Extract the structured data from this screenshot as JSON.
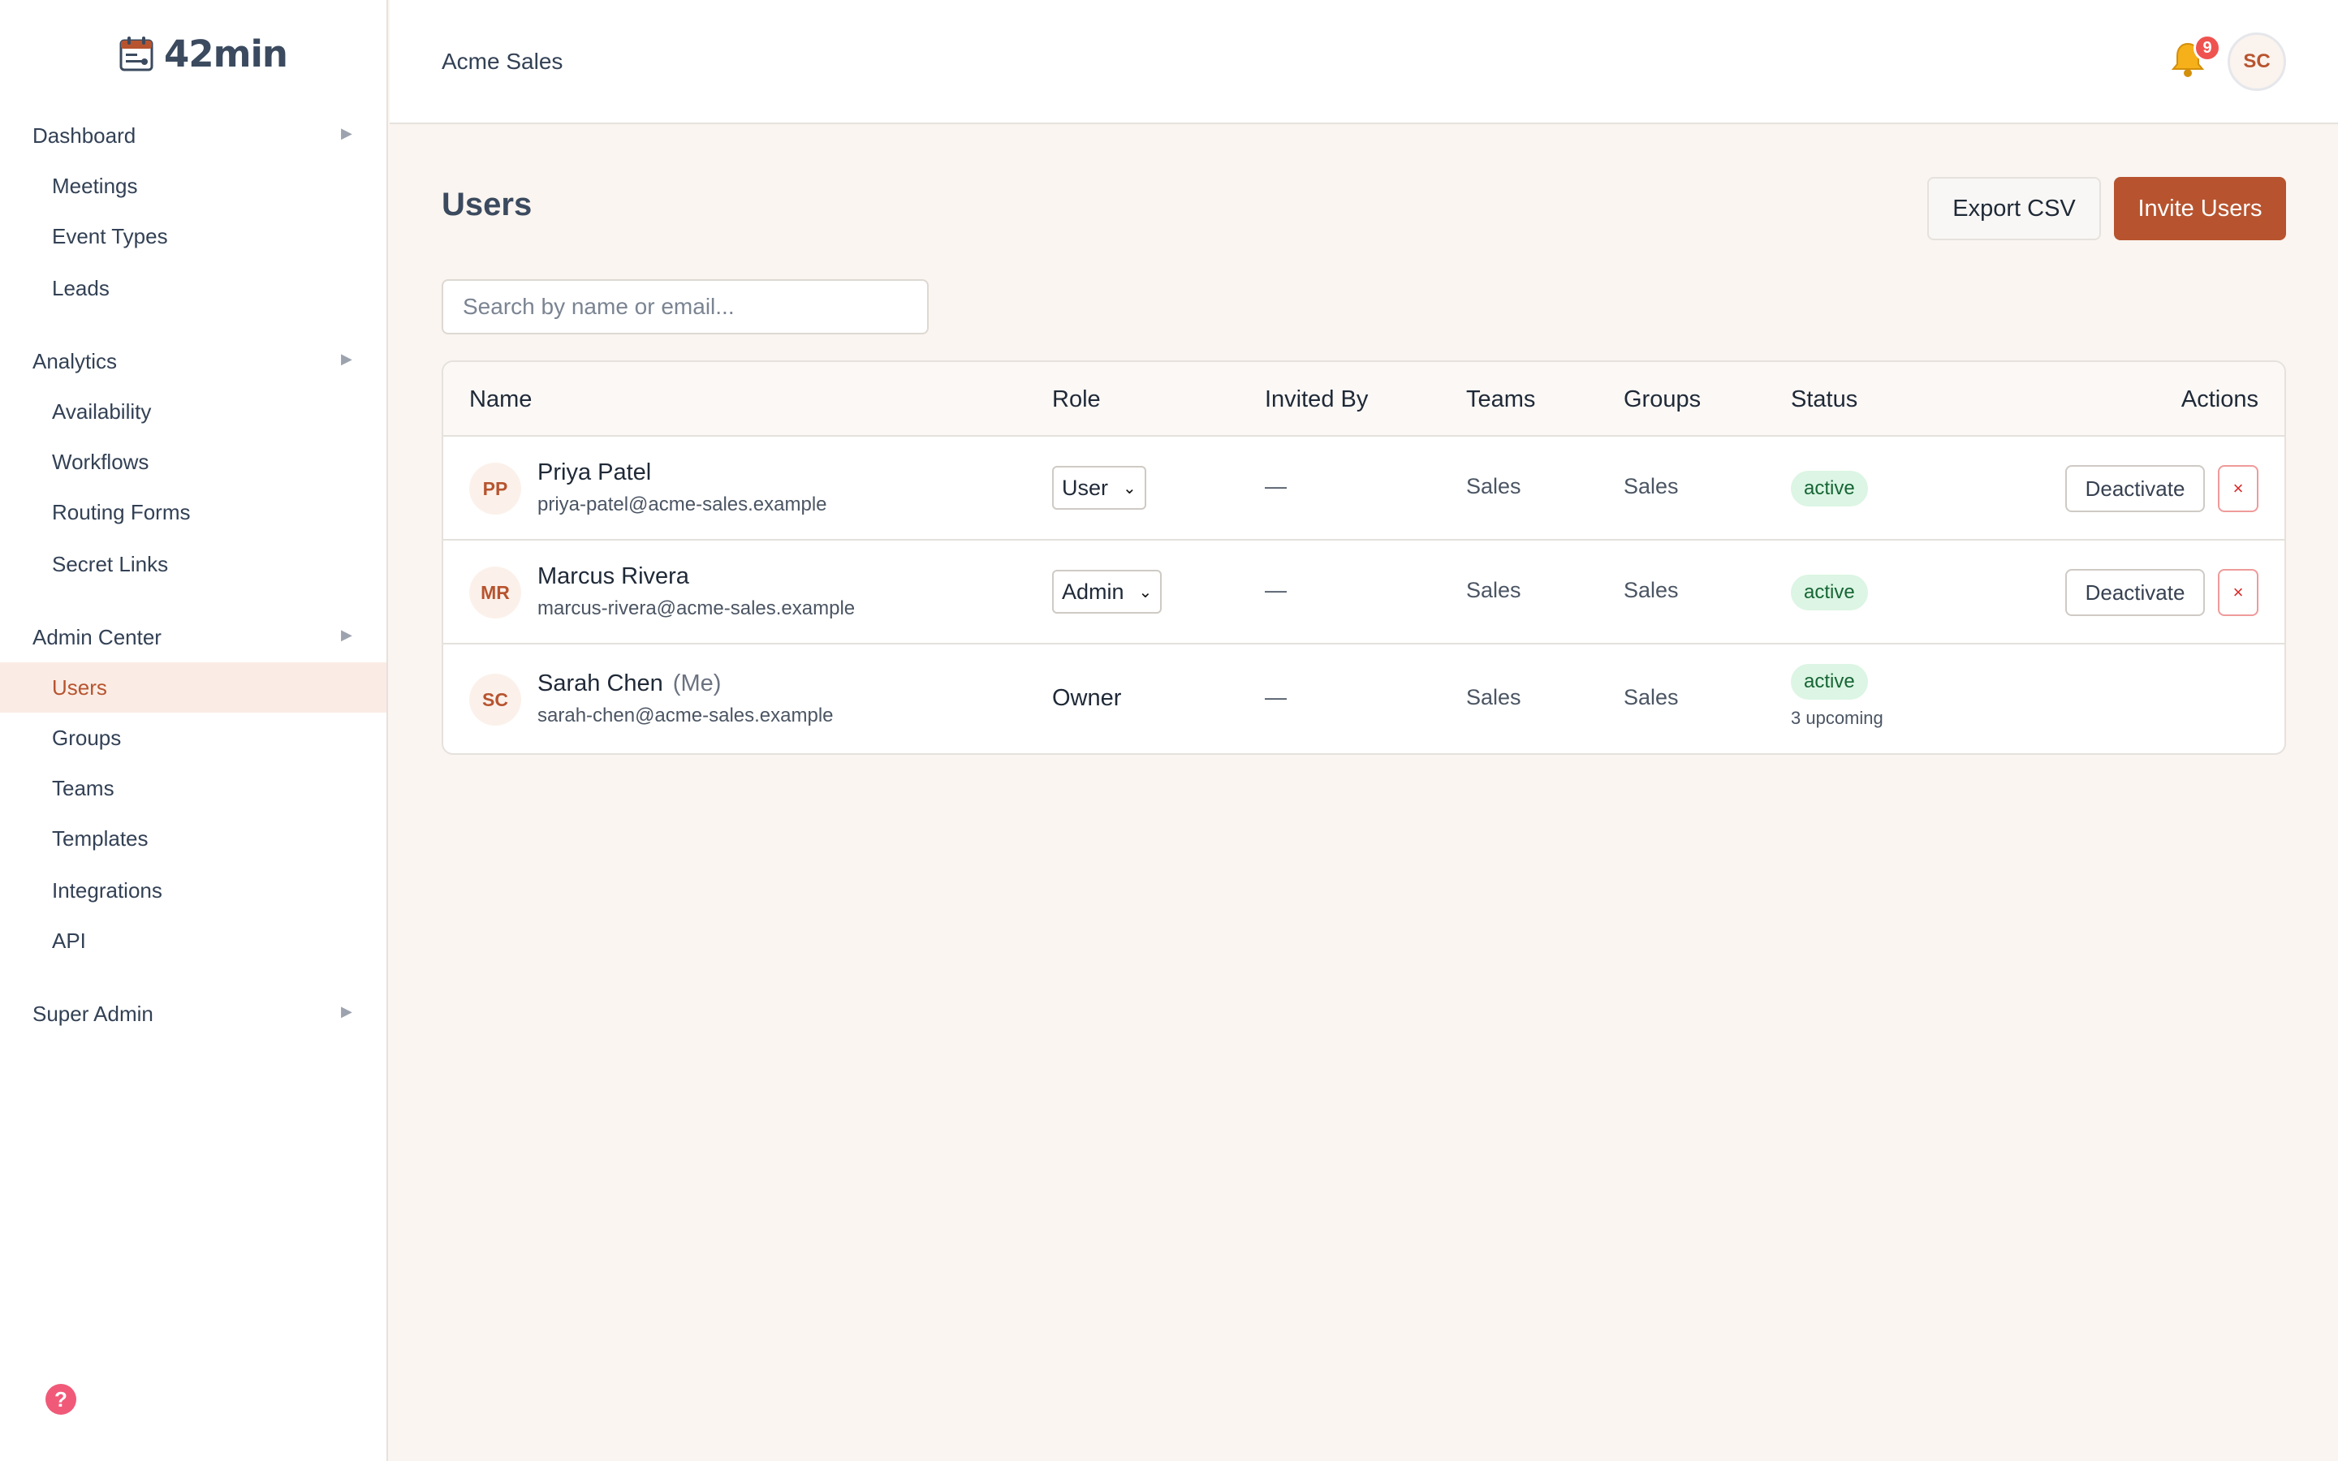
{
  "app": {
    "logo_text": "42min"
  },
  "sidebar": {
    "groups": [
      {
        "title": "Dashboard",
        "items": [
          "Meetings",
          "Event Types",
          "Leads"
        ]
      },
      {
        "title": "Analytics",
        "items": [
          "Availability",
          "Workflows",
          "Routing Forms",
          "Secret Links"
        ]
      },
      {
        "title": "Admin Center",
        "items": [
          "Users",
          "Groups",
          "Teams",
          "Templates",
          "Integrations",
          "API"
        ]
      },
      {
        "title": "Super Admin",
        "items": []
      }
    ],
    "active_item": "Users"
  },
  "header": {
    "org_name": "Acme Sales",
    "notification_count": "9",
    "user_initials": "SC"
  },
  "main": {
    "title": "Users",
    "export_label": "Export CSV",
    "invite_label": "Invite Users",
    "search_placeholder": "Search by name or email..."
  },
  "table": {
    "columns": [
      "Name",
      "Role",
      "Invited By",
      "Teams",
      "Groups",
      "Status",
      "Actions"
    ],
    "rows": [
      {
        "initials": "PP",
        "name": "Priya Patel",
        "me": "",
        "email": "priya-patel@acme-sales.example",
        "role": "User",
        "invited_by": "—",
        "teams": "Sales",
        "groups": "Sales",
        "status": "active",
        "note": "",
        "deactivate_label": "Deactivate",
        "remove_label": "×"
      },
      {
        "initials": "MR",
        "name": "Marcus Rivera",
        "me": "",
        "email": "marcus-rivera@acme-sales.example",
        "role": "Admin",
        "invited_by": "—",
        "teams": "Sales",
        "groups": "Sales",
        "status": "active",
        "note": "",
        "deactivate_label": "Deactivate",
        "remove_label": "×"
      },
      {
        "initials": "SC",
        "name": "Sarah Chen",
        "me": "(Me)",
        "email": "sarah-chen@acme-sales.example",
        "role": "Owner",
        "invited_by": "—",
        "teams": "Sales",
        "groups": "Sales",
        "status": "active",
        "note": "3 upcoming"
      }
    ]
  },
  "colors": {
    "accent": "#b7542f",
    "status_active_bg": "#dcf5e4",
    "danger": "#dc2626"
  }
}
